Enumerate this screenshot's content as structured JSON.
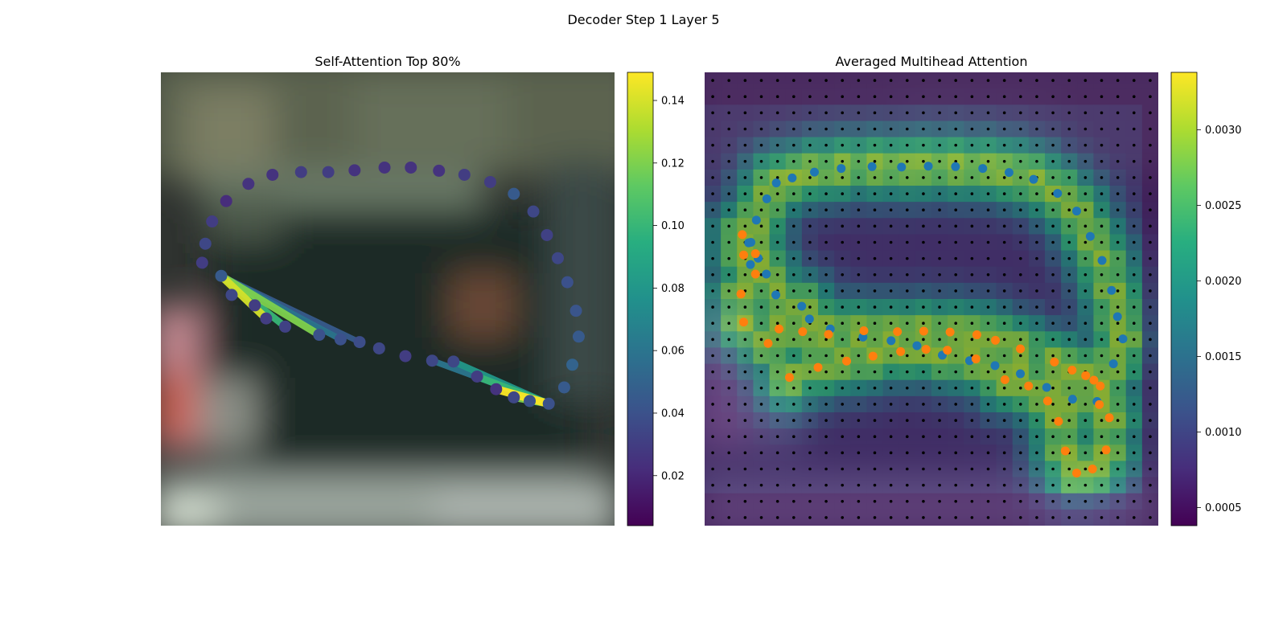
{
  "figure": {
    "suptitle": "Decoder Step 1 Layer 5"
  },
  "chart_data": [
    {
      "type": "scatter",
      "title": "Self-Attention Top 80%",
      "description_axes": "image axes hidden",
      "colormap": "viridis",
      "colorbar": {
        "min": 0.004,
        "max": 0.149,
        "ticks": [
          0.02,
          0.04,
          0.06,
          0.08,
          0.1,
          0.12,
          0.14
        ],
        "tick_labels": [
          "0.02",
          "0.04",
          "0.06",
          "0.08",
          "0.10",
          "0.12",
          "0.14"
        ]
      },
      "points": [
        {
          "x": 13.3,
          "y": 44.9,
          "v": 0.045
        },
        {
          "x": 15.6,
          "y": 49.1,
          "v": 0.035
        },
        {
          "x": 20.7,
          "y": 51.4,
          "v": 0.03
        },
        {
          "x": 23.2,
          "y": 54.3,
          "v": 0.03
        },
        {
          "x": 27.4,
          "y": 56.1,
          "v": 0.032
        },
        {
          "x": 34.9,
          "y": 57.9,
          "v": 0.04
        },
        {
          "x": 39.6,
          "y": 58.9,
          "v": 0.04
        },
        {
          "x": 43.8,
          "y": 59.5,
          "v": 0.038
        },
        {
          "x": 48.1,
          "y": 60.9,
          "v": 0.035
        },
        {
          "x": 53.9,
          "y": 62.6,
          "v": 0.03
        },
        {
          "x": 59.8,
          "y": 63.6,
          "v": 0.035
        },
        {
          "x": 64.5,
          "y": 63.8,
          "v": 0.035
        },
        {
          "x": 69.7,
          "y": 67.1,
          "v": 0.03
        },
        {
          "x": 73.9,
          "y": 69.9,
          "v": 0.025
        },
        {
          "x": 77.8,
          "y": 71.7,
          "v": 0.035
        },
        {
          "x": 81.3,
          "y": 72.5,
          "v": 0.04
        },
        {
          "x": 85.5,
          "y": 73.1,
          "v": 0.04
        },
        {
          "x": 88.9,
          "y": 69.5,
          "v": 0.045
        },
        {
          "x": 90.7,
          "y": 64.5,
          "v": 0.05
        },
        {
          "x": 92.1,
          "y": 58.3,
          "v": 0.045
        },
        {
          "x": 91.5,
          "y": 52.6,
          "v": 0.042
        },
        {
          "x": 89.6,
          "y": 46.3,
          "v": 0.04
        },
        {
          "x": 87.5,
          "y": 41.0,
          "v": 0.035
        },
        {
          "x": 85.1,
          "y": 35.9,
          "v": 0.032
        },
        {
          "x": 82.1,
          "y": 30.7,
          "v": 0.035
        },
        {
          "x": 77.8,
          "y": 26.8,
          "v": 0.045
        },
        {
          "x": 72.6,
          "y": 24.2,
          "v": 0.03
        },
        {
          "x": 66.9,
          "y": 22.6,
          "v": 0.03
        },
        {
          "x": 61.3,
          "y": 21.7,
          "v": 0.025
        },
        {
          "x": 55.1,
          "y": 21.0,
          "v": 0.025
        },
        {
          "x": 49.3,
          "y": 21.0,
          "v": 0.025
        },
        {
          "x": 42.7,
          "y": 21.6,
          "v": 0.025
        },
        {
          "x": 36.9,
          "y": 22.0,
          "v": 0.03
        },
        {
          "x": 30.9,
          "y": 22.0,
          "v": 0.03
        },
        {
          "x": 24.6,
          "y": 22.6,
          "v": 0.025
        },
        {
          "x": 19.3,
          "y": 24.6,
          "v": 0.025
        },
        {
          "x": 14.4,
          "y": 28.4,
          "v": 0.022
        },
        {
          "x": 11.3,
          "y": 32.9,
          "v": 0.03
        },
        {
          "x": 9.8,
          "y": 37.8,
          "v": 0.035
        },
        {
          "x": 9.1,
          "y": 42.0,
          "v": 0.03
        }
      ],
      "edges": [
        {
          "from": 0,
          "to": 6,
          "v": 0.06
        },
        {
          "from": 0,
          "to": 7,
          "v": 0.045
        },
        {
          "from": 0,
          "to": 5,
          "v": 0.12
        },
        {
          "from": 0,
          "to": 3,
          "v": 0.14
        },
        {
          "from": 0,
          "to": 4,
          "v": 0.1
        },
        {
          "from": 10,
          "to": 16,
          "v": 0.06
        },
        {
          "from": 11,
          "to": 16,
          "v": 0.08
        },
        {
          "from": 12,
          "to": 16,
          "v": 0.1
        },
        {
          "from": 13,
          "to": 16,
          "v": 0.149
        },
        {
          "from": 14,
          "to": 16,
          "v": 0.12
        },
        {
          "from": 15,
          "to": 16,
          "v": 0.09
        }
      ]
    },
    {
      "type": "heatmap",
      "title": "Averaged Multihead Attention",
      "description_axes": "image axes hidden",
      "colormap": "viridis",
      "colorbar": {
        "min": 0.00038,
        "max": 0.00338,
        "ticks": [
          0.0005,
          0.001,
          0.0015,
          0.002,
          0.0025,
          0.003
        ],
        "tick_labels": [
          "0.0005",
          "0.0010",
          "0.0015",
          "0.0020",
          "0.0025",
          "0.0030"
        ]
      },
      "grid": {
        "rows": 28,
        "cols": 28
      },
      "series": [
        {
          "color": "#1f77b4",
          "points": [
            {
              "x": 10.1,
              "y": 42.4
            },
            {
              "x": 9.7,
              "y": 37.6
            },
            {
              "x": 11.4,
              "y": 32.6
            },
            {
              "x": 13.7,
              "y": 27.9
            },
            {
              "x": 15.8,
              "y": 24.4
            },
            {
              "x": 19.3,
              "y": 23.3
            },
            {
              "x": 24.2,
              "y": 22.0
            },
            {
              "x": 30.1,
              "y": 21.2
            },
            {
              "x": 36.9,
              "y": 20.8
            },
            {
              "x": 43.4,
              "y": 20.9
            },
            {
              "x": 49.3,
              "y": 20.7
            },
            {
              "x": 55.3,
              "y": 20.8
            },
            {
              "x": 61.3,
              "y": 21.2
            },
            {
              "x": 67.1,
              "y": 22.1
            },
            {
              "x": 72.5,
              "y": 23.6
            },
            {
              "x": 77.8,
              "y": 26.7
            },
            {
              "x": 82.0,
              "y": 30.6
            },
            {
              "x": 85.0,
              "y": 36.2
            },
            {
              "x": 87.6,
              "y": 41.5
            },
            {
              "x": 89.7,
              "y": 48.1
            },
            {
              "x": 91.0,
              "y": 53.9
            },
            {
              "x": 92.2,
              "y": 58.8
            },
            {
              "x": 90.1,
              "y": 64.3
            },
            {
              "x": 86.5,
              "y": 72.6
            },
            {
              "x": 81.1,
              "y": 72.1
            },
            {
              "x": 75.4,
              "y": 69.5
            },
            {
              "x": 69.6,
              "y": 66.5
            },
            {
              "x": 64.0,
              "y": 64.7
            },
            {
              "x": 58.4,
              "y": 63.6
            },
            {
              "x": 52.4,
              "y": 62.4
            },
            {
              "x": 46.8,
              "y": 60.3
            },
            {
              "x": 41.1,
              "y": 59.2
            },
            {
              "x": 34.9,
              "y": 58.4
            },
            {
              "x": 27.7,
              "y": 56.6
            },
            {
              "x": 23.1,
              "y": 54.4
            },
            {
              "x": 21.4,
              "y": 51.6
            },
            {
              "x": 15.7,
              "y": 49.1
            },
            {
              "x": 13.6,
              "y": 44.5
            },
            {
              "x": 11.8,
              "y": 41.0
            },
            {
              "x": 10.2,
              "y": 37.5
            }
          ]
        },
        {
          "color": "#ff7f0e",
          "points": [
            {
              "x": 8.3,
              "y": 35.8
            },
            {
              "x": 8.6,
              "y": 40.3
            },
            {
              "x": 11.2,
              "y": 40.0
            },
            {
              "x": 11.2,
              "y": 44.5
            },
            {
              "x": 8.0,
              "y": 48.9
            },
            {
              "x": 8.6,
              "y": 55.1
            },
            {
              "x": 14.0,
              "y": 59.8
            },
            {
              "x": 16.4,
              "y": 56.6
            },
            {
              "x": 21.6,
              "y": 57.2
            },
            {
              "x": 27.3,
              "y": 57.8
            },
            {
              "x": 35.1,
              "y": 57.0
            },
            {
              "x": 42.5,
              "y": 57.2
            },
            {
              "x": 48.3,
              "y": 57.1
            },
            {
              "x": 54.1,
              "y": 57.3
            },
            {
              "x": 60.0,
              "y": 57.9
            },
            {
              "x": 64.1,
              "y": 59.1
            },
            {
              "x": 69.6,
              "y": 61.0
            },
            {
              "x": 77.1,
              "y": 63.9
            },
            {
              "x": 81.0,
              "y": 65.7
            },
            {
              "x": 84.0,
              "y": 66.9
            },
            {
              "x": 85.8,
              "y": 67.9
            },
            {
              "x": 87.2,
              "y": 69.2
            },
            {
              "x": 87.0,
              "y": 73.3
            },
            {
              "x": 89.2,
              "y": 76.2
            },
            {
              "x": 88.5,
              "y": 83.3
            },
            {
              "x": 85.5,
              "y": 87.5
            },
            {
              "x": 82.0,
              "y": 88.4
            },
            {
              "x": 79.5,
              "y": 83.5
            },
            {
              "x": 78.0,
              "y": 77.0
            },
            {
              "x": 75.6,
              "y": 72.5
            },
            {
              "x": 71.4,
              "y": 69.2
            },
            {
              "x": 66.2,
              "y": 67.8
            },
            {
              "x": 59.8,
              "y": 63.2
            },
            {
              "x": 53.5,
              "y": 61.3
            },
            {
              "x": 48.8,
              "y": 61.1
            },
            {
              "x": 43.2,
              "y": 61.6
            },
            {
              "x": 37.1,
              "y": 62.6
            },
            {
              "x": 31.3,
              "y": 63.7
            },
            {
              "x": 25.0,
              "y": 65.1
            },
            {
              "x": 18.7,
              "y": 67.3
            }
          ]
        }
      ]
    }
  ]
}
